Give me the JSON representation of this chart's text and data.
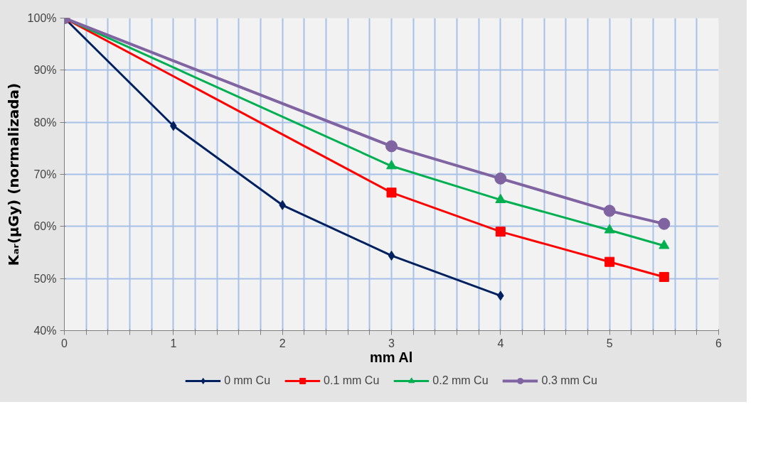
{
  "chart_data": {
    "type": "line",
    "xlabel": "mm Al",
    "ylabel": "Kₐᵣ(µGy) (normalizada)",
    "xlim": [
      0,
      6
    ],
    "xticks": [
      0,
      {
        "value": 0.2,
        "label": null
      },
      {
        "value": 0.4,
        "label": null
      },
      {
        "value": 0.6,
        "label": null
      },
      {
        "value": 0.8,
        "label": null
      },
      1,
      {
        "value": 1.2,
        "label": null
      },
      {
        "value": 1.4,
        "label": null
      },
      {
        "value": 1.6,
        "label": null
      },
      {
        "value": 1.8,
        "label": null
      },
      2,
      {
        "value": 2.2,
        "label": null
      },
      {
        "value": 2.4,
        "label": null
      },
      {
        "value": 2.6,
        "label": null
      },
      {
        "value": 2.8,
        "label": null
      },
      3,
      {
        "value": 3.2,
        "label": null
      },
      {
        "value": 3.4,
        "label": null
      },
      {
        "value": 3.6,
        "label": null
      },
      {
        "value": 3.8,
        "label": null
      },
      4,
      {
        "value": 4.2,
        "label": null
      },
      {
        "value": 4.4,
        "label": null
      },
      {
        "value": 4.6,
        "label": null
      },
      {
        "value": 4.8,
        "label": null
      },
      5,
      {
        "value": 5.2,
        "label": null
      },
      {
        "value": 5.4,
        "label": null
      },
      {
        "value": 5.6,
        "label": null
      },
      {
        "value": 5.8,
        "label": null
      },
      6
    ],
    "ylim": [
      40,
      100
    ],
    "yticks": [
      {
        "value": 40,
        "label": "40%"
      },
      {
        "value": 50,
        "label": "50%"
      },
      {
        "value": 60,
        "label": "60%"
      },
      {
        "value": 70,
        "label": "70%"
      },
      {
        "value": 80,
        "label": "80%"
      },
      {
        "value": 90,
        "label": "90%"
      },
      {
        "value": 100,
        "label": "100%"
      }
    ],
    "grid": true,
    "legend": "bottom",
    "series": [
      {
        "name": "0 mm Cu",
        "color": "#002060",
        "marker": "diamond",
        "x": [
          0,
          1,
          2,
          3,
          4
        ],
        "values": [
          100,
          79.3,
          64.1,
          54.4,
          46.7
        ]
      },
      {
        "name": "0.1 mm Cu",
        "color": "#ff0000",
        "marker": "square",
        "x": [
          0,
          3,
          4,
          5,
          5.5
        ],
        "values": [
          100,
          66.5,
          59.0,
          53.2,
          50.3
        ]
      },
      {
        "name": "0.2 mm Cu",
        "color": "#00b050",
        "marker": "triangle",
        "x": [
          0,
          3,
          4,
          5,
          5.5
        ],
        "values": [
          100,
          71.6,
          65.1,
          59.3,
          56.3
        ]
      },
      {
        "name": "0.3 mm Cu",
        "color": "#8064a2",
        "marker": "circle",
        "x": [
          0,
          3,
          4,
          5,
          5.5
        ],
        "values": [
          100,
          75.4,
          69.2,
          63.0,
          60.5
        ]
      }
    ]
  }
}
